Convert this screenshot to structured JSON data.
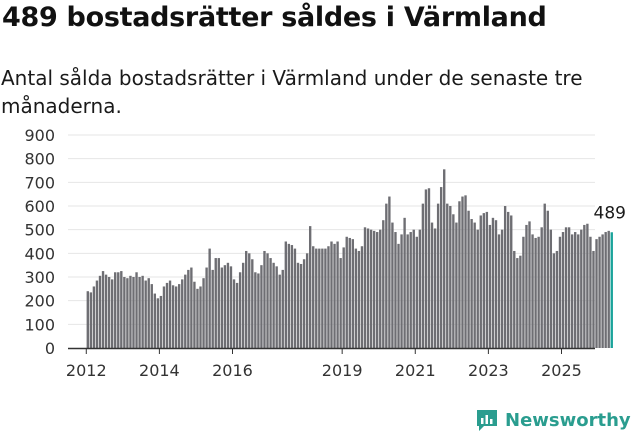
{
  "header": {
    "title": "489 bostadsrätter såldes i Värmland",
    "subtitle": "Antal sålda bostadsrätter i Värmland under de senaste tre månaderna."
  },
  "brand": {
    "name": "Newsworthy",
    "icon": "newsworthy-logo-icon",
    "color": "#2a9d8f"
  },
  "colors": {
    "bar": "#6e6e73",
    "highlight": "#1aa39a",
    "axis": "#333333",
    "grid": "#e6e6e6"
  },
  "chart_data": {
    "type": "bar",
    "y_ticks": [
      0,
      100,
      200,
      300,
      400,
      500,
      600,
      700,
      800,
      900
    ],
    "ylim": [
      0,
      900
    ],
    "x_tick_labels": [
      "2012",
      "2014",
      "2016",
      "2019",
      "2021",
      "2023",
      "2025"
    ],
    "x_tick_positions": [
      "2012-01",
      "2014-01",
      "2016-01",
      "2019-01",
      "2021-01",
      "2023-01",
      "2025-01"
    ],
    "x_range": [
      "2011-07",
      "2025-12"
    ],
    "start_month": "2012-01",
    "last_label": "489",
    "values": [
      240,
      235,
      260,
      285,
      305,
      325,
      310,
      300,
      290,
      320,
      320,
      325,
      300,
      295,
      305,
      300,
      320,
      300,
      305,
      285,
      295,
      270,
      230,
      210,
      220,
      260,
      275,
      285,
      265,
      260,
      270,
      290,
      310,
      330,
      340,
      280,
      250,
      260,
      295,
      340,
      420,
      330,
      380,
      380,
      340,
      350,
      360,
      345,
      290,
      275,
      320,
      360,
      410,
      400,
      375,
      320,
      315,
      350,
      410,
      400,
      380,
      360,
      345,
      310,
      330,
      450,
      440,
      435,
      420,
      360,
      355,
      375,
      400,
      515,
      430,
      420,
      420,
      420,
      420,
      430,
      450,
      440,
      450,
      380,
      425,
      470,
      465,
      460,
      420,
      410,
      430,
      510,
      505,
      500,
      495,
      490,
      500,
      540,
      610,
      640,
      530,
      490,
      440,
      480,
      550,
      480,
      490,
      500,
      470,
      500,
      610,
      670,
      675,
      530,
      505,
      610,
      680,
      755,
      610,
      600,
      565,
      530,
      620,
      640,
      645,
      580,
      545,
      530,
      500,
      560,
      570,
      575,
      520,
      550,
      540,
      480,
      500,
      600,
      575,
      560,
      410,
      380,
      390,
      470,
      520,
      535,
      480,
      465,
      470,
      510,
      610,
      580,
      500,
      400,
      410,
      470,
      490,
      510,
      510,
      480,
      490,
      480,
      500,
      520,
      525,
      470,
      410,
      460,
      470,
      480,
      490,
      495,
      489
    ]
  }
}
